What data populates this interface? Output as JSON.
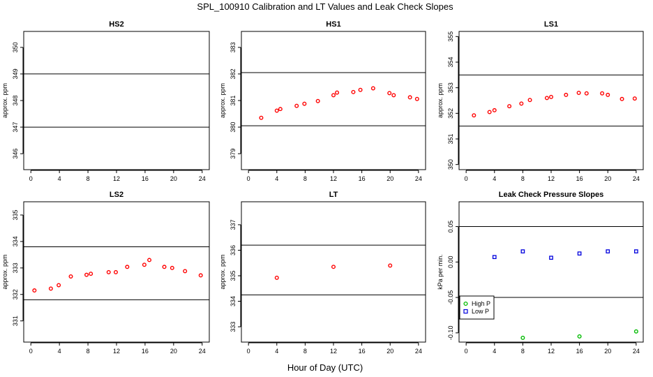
{
  "title": "SPL_100910  Calibration and LT Values and Leak Check Slopes",
  "xlabel": "Hour of Day (UTC)",
  "colors": {
    "calibration": "#ff0000",
    "high_p": "#00bb00",
    "low_p": "#0000dd",
    "axis": "#000000"
  },
  "chart_data": [
    {
      "type": "scatter",
      "title": "HS2",
      "ylabel": "approx. ppm",
      "xlim": [
        -1,
        25
      ],
      "ylim": [
        345.4,
        350.6
      ],
      "xticks": [
        0,
        4,
        8,
        12,
        16,
        20,
        24
      ],
      "yticks": [
        346,
        347,
        348,
        349,
        350
      ],
      "hlines": [
        347,
        349
      ],
      "series": [
        {
          "x": [],
          "y": [],
          "color": "#ff0000",
          "marker": "circle"
        }
      ]
    },
    {
      "type": "scatter",
      "title": "HS1",
      "ylabel": "approx. ppm",
      "xlim": [
        -1,
        25
      ],
      "ylim": [
        378.4,
        383.6
      ],
      "xticks": [
        0,
        4,
        8,
        12,
        16,
        20,
        24
      ],
      "yticks": [
        379,
        380,
        381,
        382,
        383
      ],
      "hlines": [
        380.05,
        382.05
      ],
      "series": [
        {
          "x": [
            1.8,
            4.0,
            4.5,
            6.8,
            7.9,
            9.8,
            12.0,
            12.5,
            14.8,
            15.8,
            17.6,
            19.9,
            20.5,
            22.8,
            23.8
          ],
          "y": [
            380.35,
            380.62,
            380.68,
            380.8,
            380.88,
            380.98,
            381.2,
            381.3,
            381.32,
            381.4,
            381.46,
            381.28,
            381.2,
            381.12,
            381.06
          ],
          "color": "#ff0000",
          "marker": "circle"
        }
      ]
    },
    {
      "type": "scatter",
      "title": "LS1",
      "ylabel": "approx. ppm",
      "xlim": [
        -1,
        25
      ],
      "ylim": [
        349.8,
        355.2
      ],
      "xticks": [
        0,
        4,
        8,
        12,
        16,
        20,
        24
      ],
      "yticks": [
        350,
        351,
        352,
        353,
        354,
        355
      ],
      "hlines": [
        351.5,
        353.5
      ],
      "series": [
        {
          "x": [
            1.1,
            3.3,
            4.0,
            6.1,
            7.8,
            9.0,
            11.4,
            12.0,
            14.1,
            15.9,
            17.0,
            19.2,
            20.0,
            22.0,
            23.8
          ],
          "y": [
            351.92,
            352.05,
            352.12,
            352.28,
            352.38,
            352.52,
            352.6,
            352.64,
            352.72,
            352.8,
            352.78,
            352.78,
            352.72,
            352.56,
            352.58
          ],
          "color": "#ff0000",
          "marker": "circle"
        }
      ]
    },
    {
      "type": "scatter",
      "title": "LS2",
      "ylabel": "approx. ppm",
      "xlim": [
        -1,
        25
      ],
      "ylim": [
        330.2,
        335.5
      ],
      "xticks": [
        0,
        4,
        8,
        12,
        16,
        20,
        24
      ],
      "yticks": [
        331,
        332,
        333,
        334,
        335
      ],
      "hlines": [
        331.8,
        333.8
      ],
      "series": [
        {
          "x": [
            0.5,
            2.8,
            3.9,
            5.6,
            7.8,
            8.4,
            10.9,
            11.9,
            13.5,
            15.9,
            16.6,
            18.7,
            19.8,
            21.6,
            23.8
          ],
          "y": [
            332.15,
            332.22,
            332.35,
            332.68,
            332.74,
            332.78,
            332.84,
            332.84,
            333.04,
            333.12,
            333.3,
            333.04,
            333.0,
            332.88,
            332.72
          ],
          "color": "#ff0000",
          "marker": "circle"
        }
      ]
    },
    {
      "type": "scatter",
      "title": "LT",
      "ylabel": "approx. ppm",
      "xlim": [
        -1,
        25
      ],
      "ylim": [
        332.4,
        337.9
      ],
      "xticks": [
        0,
        4,
        8,
        12,
        16,
        20,
        24
      ],
      "yticks": [
        333,
        334,
        335,
        336,
        337
      ],
      "hlines": [
        334.25,
        336.2
      ],
      "series": [
        {
          "x": [
            4.0,
            12.0,
            20.0
          ],
          "y": [
            334.92,
            335.35,
            335.4
          ],
          "color": "#ff0000",
          "marker": "circle"
        }
      ]
    },
    {
      "type": "scatter",
      "title": "Leak Check Pressure Slopes",
      "ylabel": "kPa per min.",
      "xlim": [
        -1,
        25
      ],
      "ylim": [
        -0.113,
        0.085
      ],
      "xticks": [
        0,
        4,
        8,
        12,
        16,
        20,
        24
      ],
      "yticks": [
        -0.1,
        -0.05,
        0.0,
        0.05
      ],
      "ytick_labels": [
        "-0.10",
        "-0.05",
        "0.00",
        "0.05"
      ],
      "hlines": [
        -0.05,
        0.05
      ],
      "legend": {
        "position": "bottom-left",
        "entries": [
          "High P",
          "Low P"
        ]
      },
      "series": [
        {
          "name": "High P",
          "x": [
            8,
            16,
            24
          ],
          "y": [
            -0.107,
            -0.105,
            -0.098
          ],
          "color": "#00bb00",
          "marker": "circle"
        },
        {
          "name": "Low P",
          "x": [
            4,
            8,
            12,
            16,
            20,
            24
          ],
          "y": [
            0.007,
            0.015,
            0.006,
            0.012,
            0.015,
            0.015
          ],
          "color": "#0000dd",
          "marker": "square"
        }
      ]
    }
  ]
}
